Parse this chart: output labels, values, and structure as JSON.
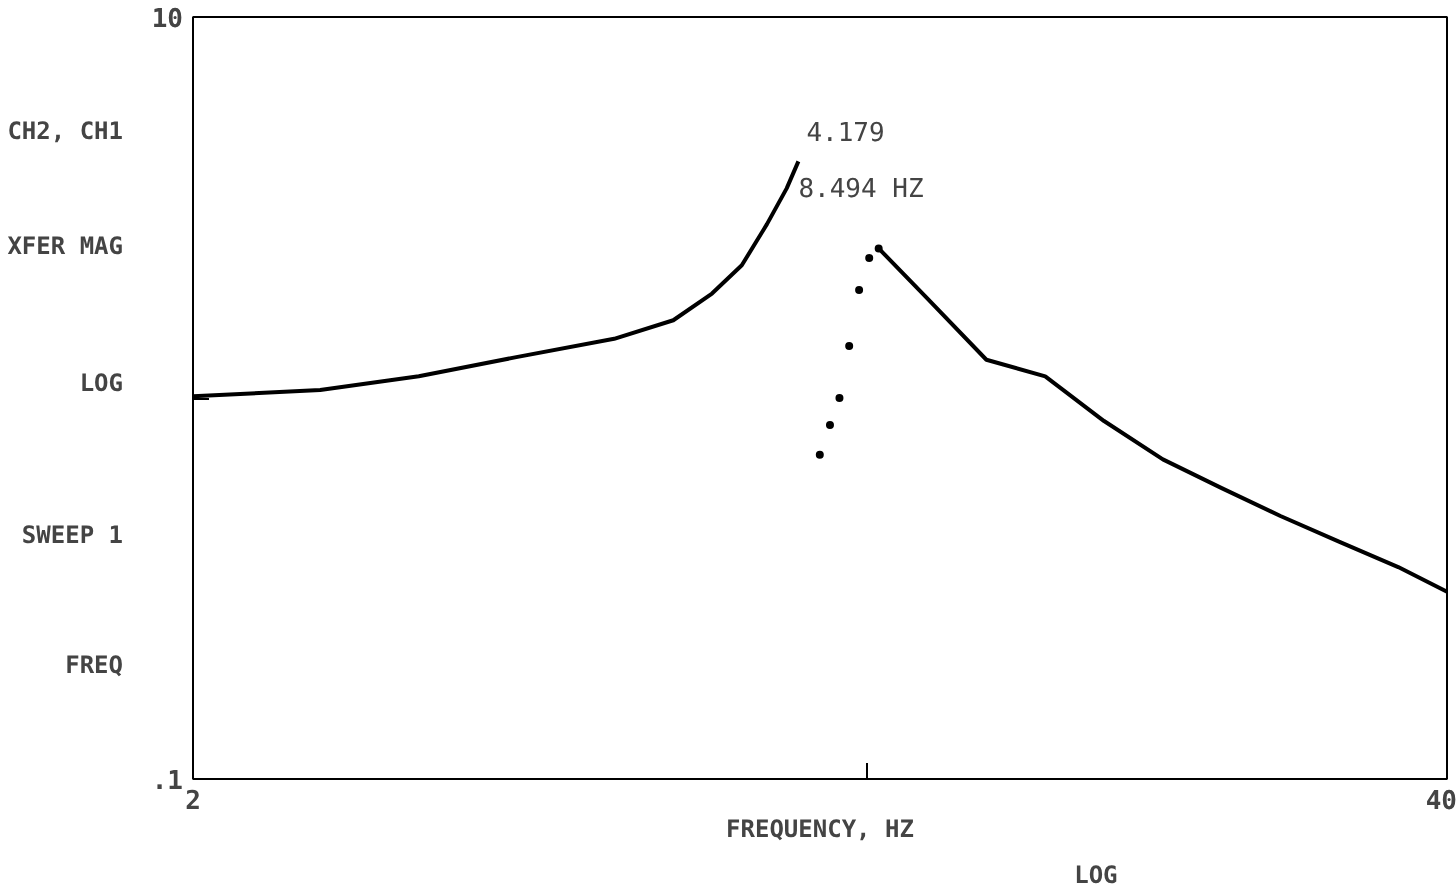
{
  "chart_data": {
    "type": "line",
    "xlabel": "FREQUENCY, HZ",
    "log": "xy",
    "grid": false,
    "marker": "none",
    "line_style": "solid",
    "xlim": [
      2,
      40
    ],
    "ylim": [
      0.1,
      10
    ],
    "xticks": [
      2,
      {
        "value": 10,
        "label": null
      },
      40
    ],
    "yticks": [
      {
        "value": 0.1,
        "label": ".1"
      },
      {
        "value": 1,
        "label": null
      },
      10
    ],
    "series": [
      {
        "color": "#000000",
        "x": [
          2.0,
          2.71,
          3.43,
          4.33,
          5.47,
          6.3,
          6.91,
          7.42,
          7.88,
          8.26,
          8.494,
          8.94,
          10.29,
          11.57,
          13.31,
          15.32,
          17.63,
          20.29,
          23.35,
          26.87,
          30.9,
          35.6,
          40
        ],
        "values": [
          1.01,
          1.05,
          1.14,
          1.28,
          1.43,
          1.6,
          1.88,
          2.23,
          2.86,
          3.55,
          4.179,
          null,
          2.47,
          1.82,
          1.26,
          1.14,
          0.87,
          0.69,
          0.58,
          0.49,
          0.42,
          0.36,
          0.31
        ]
      },
      {
        "type": "scatter",
        "marker": "circle",
        "color": "#000000",
        "x": [
          8.94,
          9.16,
          9.37,
          9.59,
          9.82,
          10.06,
          10.29
        ],
        "values": [
          0.71,
          0.85,
          1.0,
          1.37,
          1.92,
          2.33,
          2.47
        ]
      }
    ],
    "annotations": [
      "CH2, CH1",
      "XFER MAG",
      "LOG",
      "SWEEP 1",
      "FREQ",
      "LOG",
      {
        "text": "4.179",
        "x": 8.494,
        "y": 4.179
      },
      {
        "text": "8.494 HZ",
        "x": 8.494,
        "y": 4.179
      }
    ]
  }
}
